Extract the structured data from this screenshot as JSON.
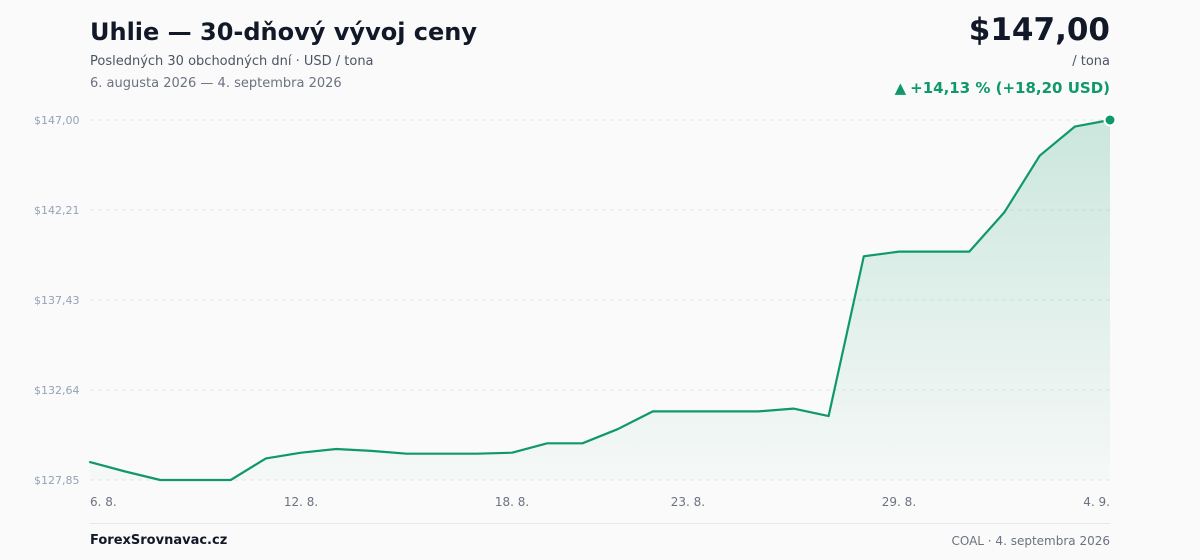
{
  "header": {
    "title": "Uhlie — 30-dňový vývoj ceny",
    "subtitle": "Posledných 30 obchodných dní · USD / tona",
    "date_range": "6. augusta 2026 — 4. septembra 2026",
    "price": "$147,00",
    "unit": "/ tona",
    "change_arrow": "▲",
    "change": "+14,13 % (+18,20 USD)"
  },
  "footer": {
    "brand": "ForexSrovnavac.cz",
    "source": "COAL · 4. septembra 2026"
  },
  "colors": {
    "line": "#0f9968",
    "positive": "#0f9968",
    "grid": "#e5e7eb",
    "axis_text": "#94a3b8"
  },
  "chart_data": {
    "type": "area",
    "title": "Uhlie — 30-dňový vývoj ceny",
    "xlabel": "",
    "ylabel": "",
    "ylim": [
      127.85,
      147.0
    ],
    "yticks": [
      147.0,
      142.21,
      137.43,
      132.64,
      127.85
    ],
    "ytick_labels": [
      "$147,00",
      "$142,21",
      "$137,43",
      "$132,64",
      "$127,85"
    ],
    "xtick_labels": [
      {
        "index": 0,
        "label": "6. 8."
      },
      {
        "index": 6,
        "label": "12. 8."
      },
      {
        "index": 12,
        "label": "18. 8."
      },
      {
        "index": 17,
        "label": "23. 8."
      },
      {
        "index": 23,
        "label": "29. 8."
      },
      {
        "index": 29,
        "label": "4. 9."
      }
    ],
    "grid": true,
    "series": [
      {
        "values": [
          128.8,
          128.3,
          127.85,
          127.85,
          127.85,
          129.0,
          129.3,
          129.5,
          129.4,
          129.25,
          129.25,
          129.25,
          129.3,
          129.8,
          129.8,
          130.55,
          131.5,
          131.5,
          131.5,
          131.5,
          131.65,
          131.25,
          139.75,
          140.0,
          140.0,
          140.0,
          142.1,
          145.1,
          146.65,
          147.0
        ]
      }
    ]
  }
}
